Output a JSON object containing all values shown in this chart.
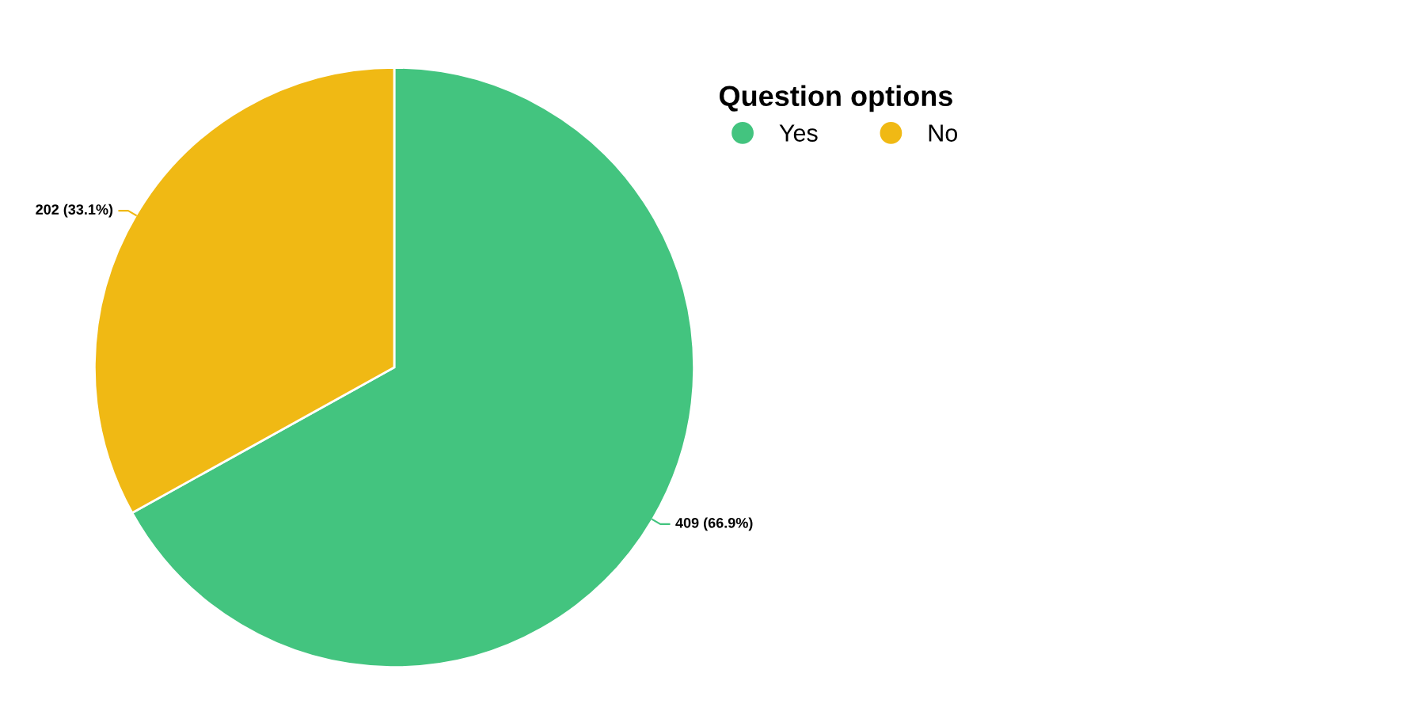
{
  "chart_data": {
    "type": "pie",
    "categories": [
      "Yes",
      "No"
    ],
    "values": [
      409,
      202
    ],
    "colors": [
      "#43c47f",
      "#f0b914"
    ],
    "value_labels": [
      "409 (66.9%)",
      "202 (33.1%)"
    ],
    "legend_title": "Question options",
    "legend": "top right"
  }
}
